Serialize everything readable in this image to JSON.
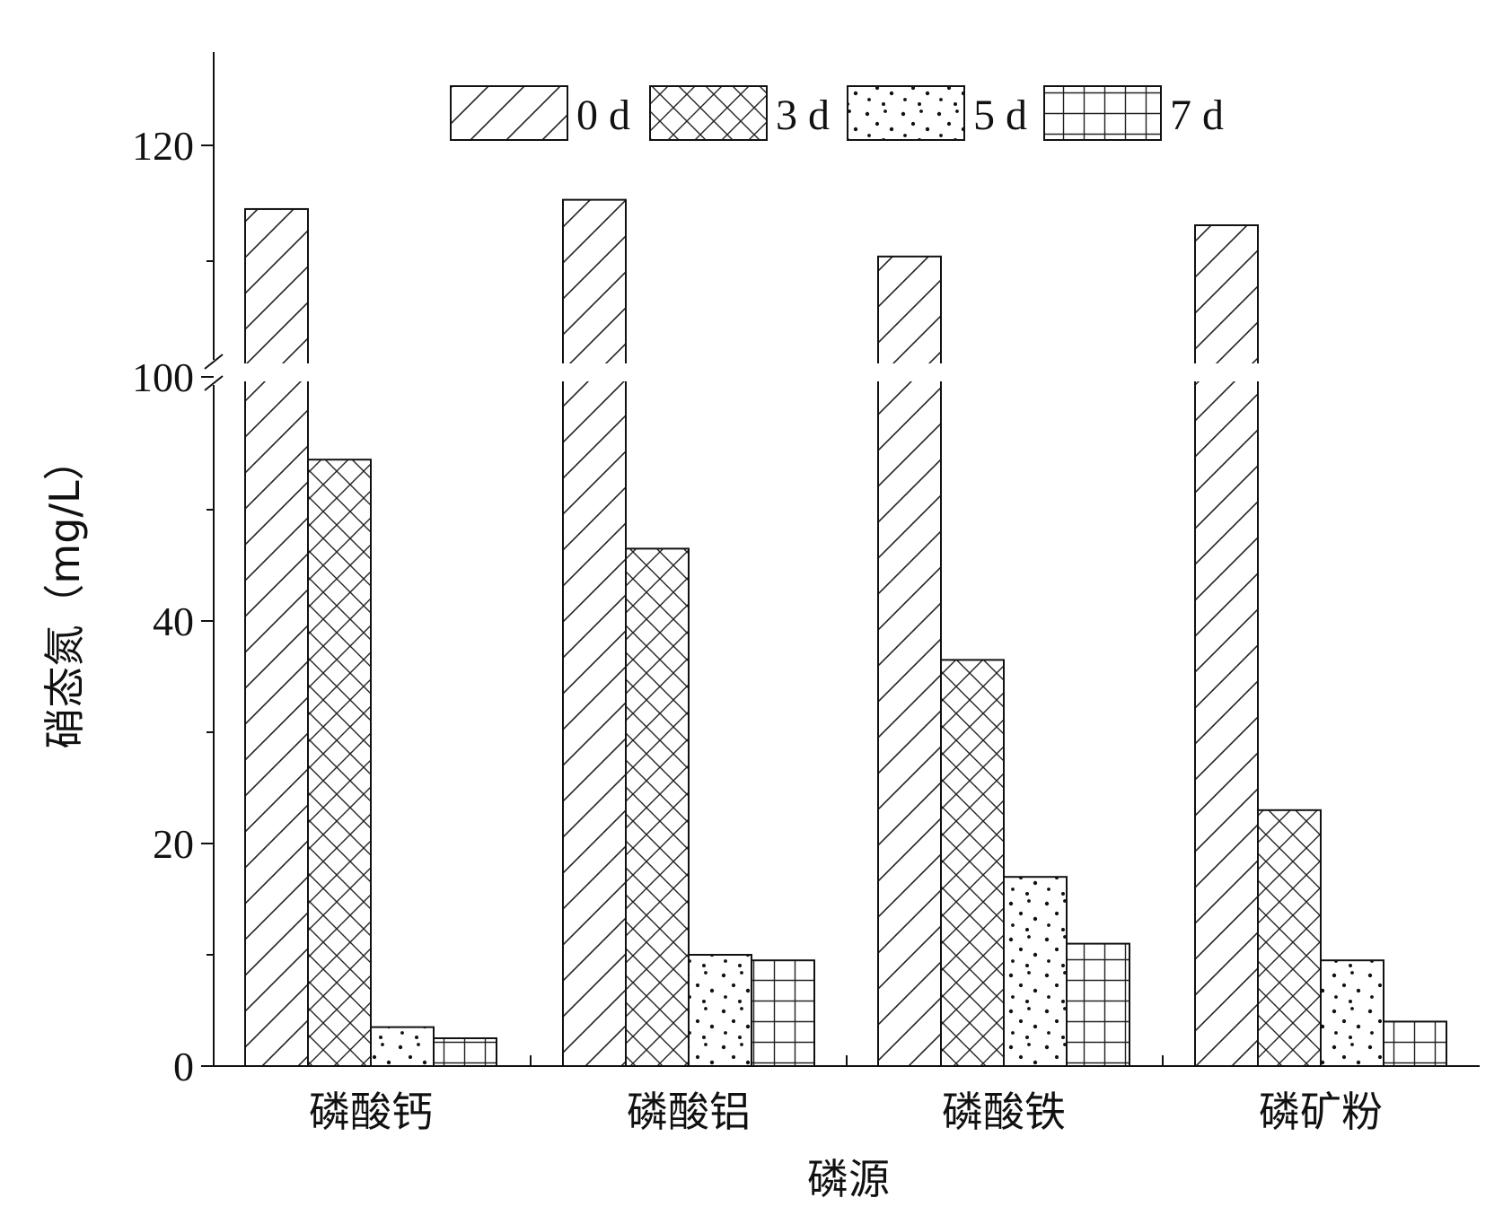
{
  "chart_data": {
    "type": "bar",
    "title": "",
    "xlabel": "磷源",
    "ylabel": "硝态氮（mg/L）",
    "categories": [
      "磷酸钙",
      "磷酸铝",
      "磷酸铁",
      "磷矿粉"
    ],
    "series": [
      {
        "name": "0 d",
        "pattern": "diagonal-hatch",
        "values": [
          114.5,
          115.3,
          110.4,
          113.1
        ]
      },
      {
        "name": "3 d",
        "pattern": "crosshatch",
        "values": [
          54.5,
          46.5,
          36.5,
          23.0
        ]
      },
      {
        "name": "5 d",
        "pattern": "dots",
        "values": [
          3.5,
          10.0,
          17.0,
          9.5
        ]
      },
      {
        "name": "7 d",
        "pattern": "grid",
        "values": [
          2.5,
          9.5,
          11.0,
          4.0
        ]
      }
    ],
    "y_axis": {
      "broken": true,
      "lower_range": [
        0,
        60
      ],
      "upper_range": [
        100,
        120
      ],
      "tick_labels": [
        "0",
        "20",
        "40",
        "100",
        "120"
      ],
      "minor_ticks": [
        10,
        30,
        50,
        110
      ]
    },
    "legend_position": "top",
    "grid": false
  }
}
